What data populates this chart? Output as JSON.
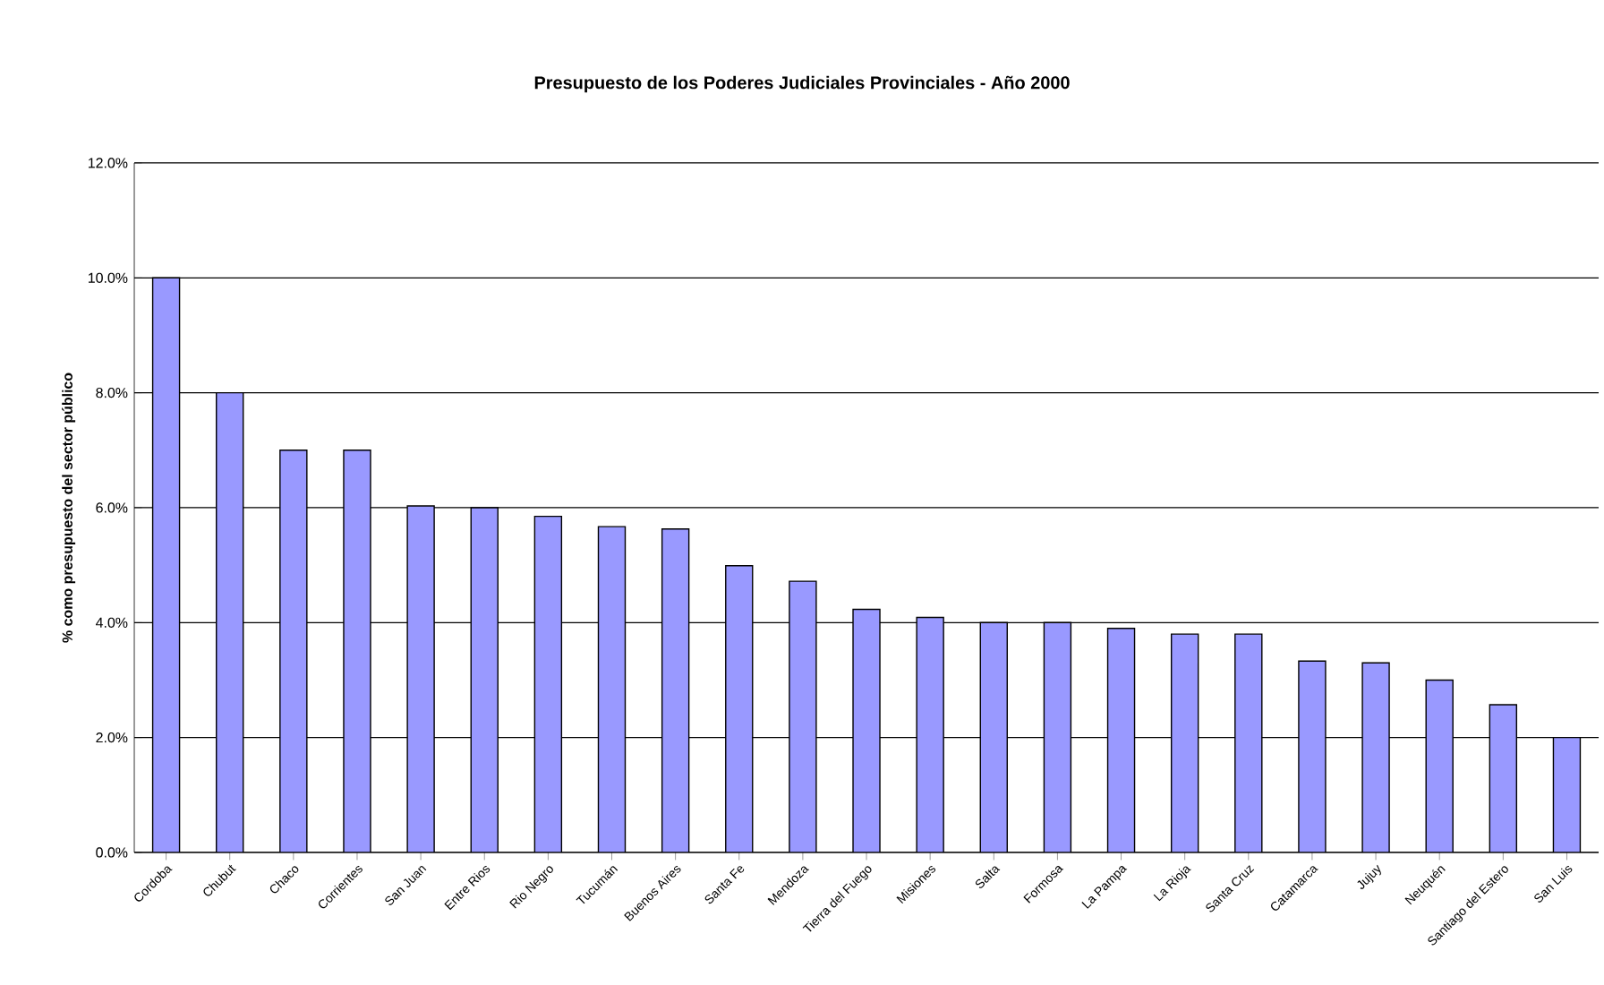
{
  "chart_data": {
    "type": "bar",
    "title": "Presupuesto de los Poderes Judiciales Provinciales - Año 2000",
    "ylabel": "% como presupuesto del sector público",
    "categories": [
      "Cordoba",
      "Chubut",
      "Chaco",
      "Corrientes",
      "San Juan",
      "Entre Rios",
      "Rio Negro",
      "Tucumán",
      "Buenos Aires",
      "Santa Fe",
      "Mendoza",
      "Tierra del Fuego",
      "Misiones",
      "Salta",
      "Formosa",
      "La Pampa",
      "La Rioja",
      "Santa Cruz",
      "Catamarca",
      "Jujuy",
      "Neuquén",
      "Santiago del Estero",
      "San Luis"
    ],
    "values": [
      10,
      8,
      7,
      7,
      6.03,
      6.0,
      5.85,
      5.67,
      5.63,
      4.99,
      4.72,
      4.23,
      4.09,
      4.0,
      4.0,
      3.9,
      3.8,
      3.8,
      3.33,
      3.3,
      3.0,
      2.57,
      2.0
    ],
    "color": "#9999ff",
    "ylim": [
      0,
      12
    ],
    "yticks": [
      {
        "value": 0,
        "label": "0.0%"
      },
      {
        "value": 2,
        "label": "2.0%"
      },
      {
        "value": 4,
        "label": "4.0%"
      },
      {
        "value": 6,
        "label": "6.0%"
      },
      {
        "value": 8,
        "label": "8.0%"
      },
      {
        "value": 10,
        "label": "10.0%"
      },
      {
        "value": 12,
        "label": "12.0%"
      }
    ],
    "grid": "y"
  }
}
